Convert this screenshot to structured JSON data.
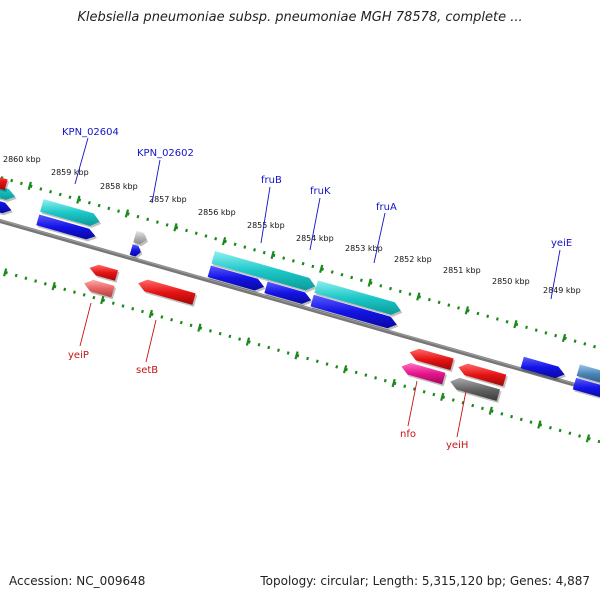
{
  "title": "Klebsiella pneumoniae subsp. pneumoniae MGH 78578, complete ...",
  "footer": {
    "accession": "Accession: NC_009648",
    "topology": "Topology: circular; Length: 5,315,120 bp; Genes: 4,887"
  },
  "scale_labels": [
    "2860 kbp",
    "2859 kbp",
    "2858 kbp",
    "2857 kbp",
    "2856 kbp",
    "2855 kbp",
    "2854 kbp",
    "2853 kbp",
    "2852 kbp",
    "2851 kbp",
    "2850 kbp",
    "2849 kbp"
  ],
  "gene_labels_top": [
    "KPN_02604",
    "KPN_02602",
    "fruB",
    "fruK",
    "fruA",
    "yeiE"
  ],
  "gene_labels_bottom": [
    "yeiP",
    "setB",
    "nfo",
    "yeiH"
  ],
  "colors": {
    "cyan": "#1ec8c8",
    "blue": "#1414e6",
    "red": "#e61414",
    "pink": "#e6148c",
    "grey": "#646464",
    "lightgrey": "#b4b4b4",
    "salmon": "#e66464",
    "steelblue": "#4682b4",
    "backbone": "#777777",
    "ticks": "#1a8a1a",
    "top_label": "#1414c8",
    "bottom_label": "#c81414"
  }
}
